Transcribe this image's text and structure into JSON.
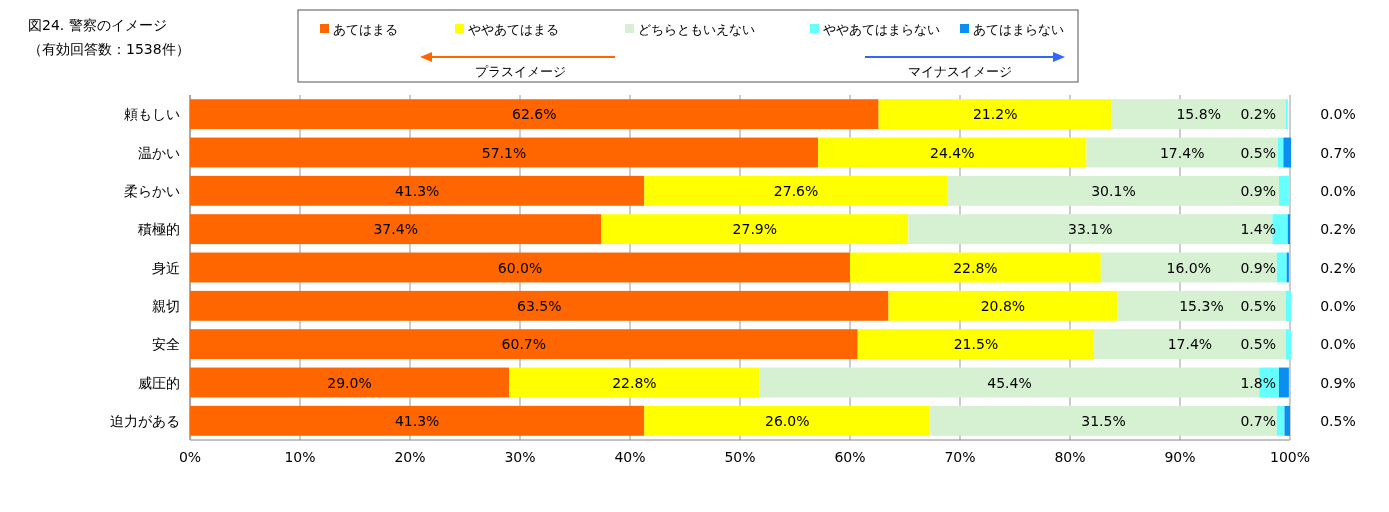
{
  "chart_data": {
    "type": "bar",
    "orientation": "horizontal",
    "stacked": true,
    "title": "図24. 警察のイメージ",
    "subtitle": "（有効回答数：1538件）",
    "categories": [
      "頼もしい",
      "温かい",
      "柔らかい",
      "積極的",
      "身近",
      "親切",
      "安全",
      "威圧的",
      "迫力がある"
    ],
    "series": [
      {
        "name": "あてはまる",
        "color": "#ff6600",
        "values": [
          62.6,
          57.1,
          41.3,
          37.4,
          60.0,
          63.5,
          60.7,
          29.0,
          41.3
        ],
        "value_labels": [
          "62.6%",
          "57.1%",
          "41.3%",
          "37.4%",
          "60.0%",
          "63.5%",
          "60.7%",
          "29.0%",
          "41.3%"
        ]
      },
      {
        "name": "ややあてはまる",
        "color": "#ffff00",
        "values": [
          21.2,
          24.4,
          27.6,
          27.9,
          22.8,
          20.8,
          21.5,
          22.8,
          26.0
        ],
        "value_labels": [
          "21.2%",
          "24.4%",
          "27.6%",
          "27.9%",
          "22.8%",
          "20.8%",
          "21.5%",
          "22.8%",
          "26.0%"
        ]
      },
      {
        "name": "どちらともいえない",
        "color": "#d6f0d2",
        "values": [
          15.8,
          17.4,
          30.1,
          33.1,
          16.0,
          15.3,
          17.4,
          45.4,
          31.5
        ],
        "value_labels": [
          "15.8%",
          "17.4%",
          "30.1%",
          "33.1%",
          "16.0%",
          "15.3%",
          "17.4%",
          "45.4%",
          "31.5%"
        ]
      },
      {
        "name": "ややあてはまらない",
        "color": "#66ffff",
        "values": [
          0.2,
          0.5,
          0.9,
          1.4,
          0.9,
          0.5,
          0.5,
          1.8,
          0.7
        ],
        "value_labels": [
          "0.2%",
          "0.5%",
          "0.9%",
          "1.4%",
          "0.9%",
          "0.5%",
          "0.5%",
          "1.8%",
          "0.7%"
        ]
      },
      {
        "name": "あてはまらない",
        "color": "#0a8ff0",
        "values": [
          0.0,
          0.7,
          0.0,
          0.2,
          0.2,
          0.0,
          0.0,
          0.9,
          0.5
        ],
        "value_labels": [
          "0.0%",
          "0.7%",
          "0.0%",
          "0.2%",
          "0.2%",
          "0.0%",
          "0.0%",
          "0.9%",
          "0.5%"
        ]
      }
    ],
    "xlim": [
      0,
      100
    ],
    "xticks": [
      {
        "value": 0,
        "label": "0%"
      },
      {
        "value": 10,
        "label": "10%"
      },
      {
        "value": 20,
        "label": "20%"
      },
      {
        "value": 30,
        "label": "30%"
      },
      {
        "value": 40,
        "label": "40%"
      },
      {
        "value": 50,
        "label": "50%"
      },
      {
        "value": 60,
        "label": "60%"
      },
      {
        "value": 70,
        "label": "70%"
      },
      {
        "value": 80,
        "label": "80%"
      },
      {
        "value": 90,
        "label": "90%"
      },
      {
        "value": 100,
        "label": "100%"
      }
    ],
    "grid": "x",
    "legend": "top",
    "annotations": [
      "プラスイメージ",
      "マイナスイメージ"
    ]
  }
}
